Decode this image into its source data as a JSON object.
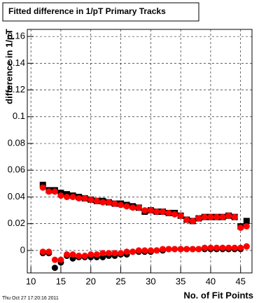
{
  "chart_data": {
    "type": "scatter",
    "title": "Fitted difference in 1/pT Primary Tracks",
    "y_label": "difference in 1/pT",
    "x_label": "No. of Fit Points",
    "footer": "Thu Oct 27 17:20:16 2011",
    "xlim": [
      9.4,
      46.9
    ],
    "ylim": [
      -0.0168,
      0.1653
    ],
    "xticks": [
      10,
      15,
      20,
      25,
      30,
      35,
      40,
      45
    ],
    "yticks": [
      0,
      0.02,
      0.04,
      0.06,
      0.08,
      0.1,
      0.12,
      0.14,
      0.16
    ],
    "grid": true,
    "x": [
      12,
      13,
      14,
      15,
      16,
      17,
      18,
      19,
      20,
      21,
      22,
      23,
      24,
      25,
      26,
      27,
      28,
      29,
      30,
      31,
      32,
      33,
      34,
      35,
      36,
      37,
      38,
      39,
      40,
      41,
      42,
      43,
      44,
      45,
      46
    ],
    "series": [
      {
        "color": "#000000",
        "marker": "square",
        "values": [
          0.049,
          0.045,
          0.045,
          0.043,
          0.042,
          0.041,
          0.04,
          0.039,
          0.038,
          0.037,
          0.037,
          0.036,
          0.035,
          0.035,
          0.034,
          0.033,
          0.032,
          0.029,
          0.03,
          0.029,
          0.029,
          0.028,
          0.028,
          0.026,
          0.023,
          0.022,
          0.024,
          0.025,
          0.025,
          0.025,
          0.025,
          0.026,
          0.025,
          0.018,
          0.022
        ]
      },
      {
        "color": "#000000",
        "marker": "circle",
        "values": [
          -0.002,
          -0.002,
          -0.013,
          -0.009,
          -0.004,
          -0.006,
          -0.005,
          -0.005,
          -0.005,
          -0.005,
          -0.005,
          -0.004,
          -0.004,
          -0.003,
          -0.003,
          -0.001,
          -0.001,
          -0.001,
          -0.001,
          0.0,
          0.0,
          0.001,
          0.001,
          0.001,
          0.001,
          0.001,
          0.001,
          0.001,
          0.001,
          0.001,
          0.001,
          0.001,
          0.001,
          0.001,
          0.003
        ]
      },
      {
        "color": "#ff0000",
        "marker": "circle",
        "values": [
          0.047,
          0.044,
          0.044,
          0.041,
          0.04,
          0.04,
          0.039,
          0.039,
          0.038,
          0.037,
          0.036,
          0.036,
          0.035,
          0.034,
          0.033,
          0.032,
          0.032,
          0.03,
          0.03,
          0.029,
          0.029,
          0.028,
          0.027,
          0.026,
          0.023,
          0.022,
          0.024,
          0.025,
          0.025,
          0.025,
          0.025,
          0.026,
          0.025,
          0.017,
          0.018
        ]
      },
      {
        "color": "#ff0000",
        "marker": "circle",
        "values": [
          -0.001,
          -0.001,
          -0.007,
          -0.007,
          -0.003,
          -0.003,
          -0.004,
          -0.004,
          -0.003,
          -0.003,
          -0.002,
          -0.002,
          -0.002,
          -0.002,
          -0.001,
          -0.001,
          0.0,
          0.0,
          0.0,
          0.0,
          0.001,
          0.001,
          0.001,
          0.001,
          0.001,
          0.001,
          0.001,
          0.002,
          0.002,
          0.002,
          0.002,
          0.002,
          0.002,
          0.002,
          0.003
        ]
      }
    ]
  }
}
